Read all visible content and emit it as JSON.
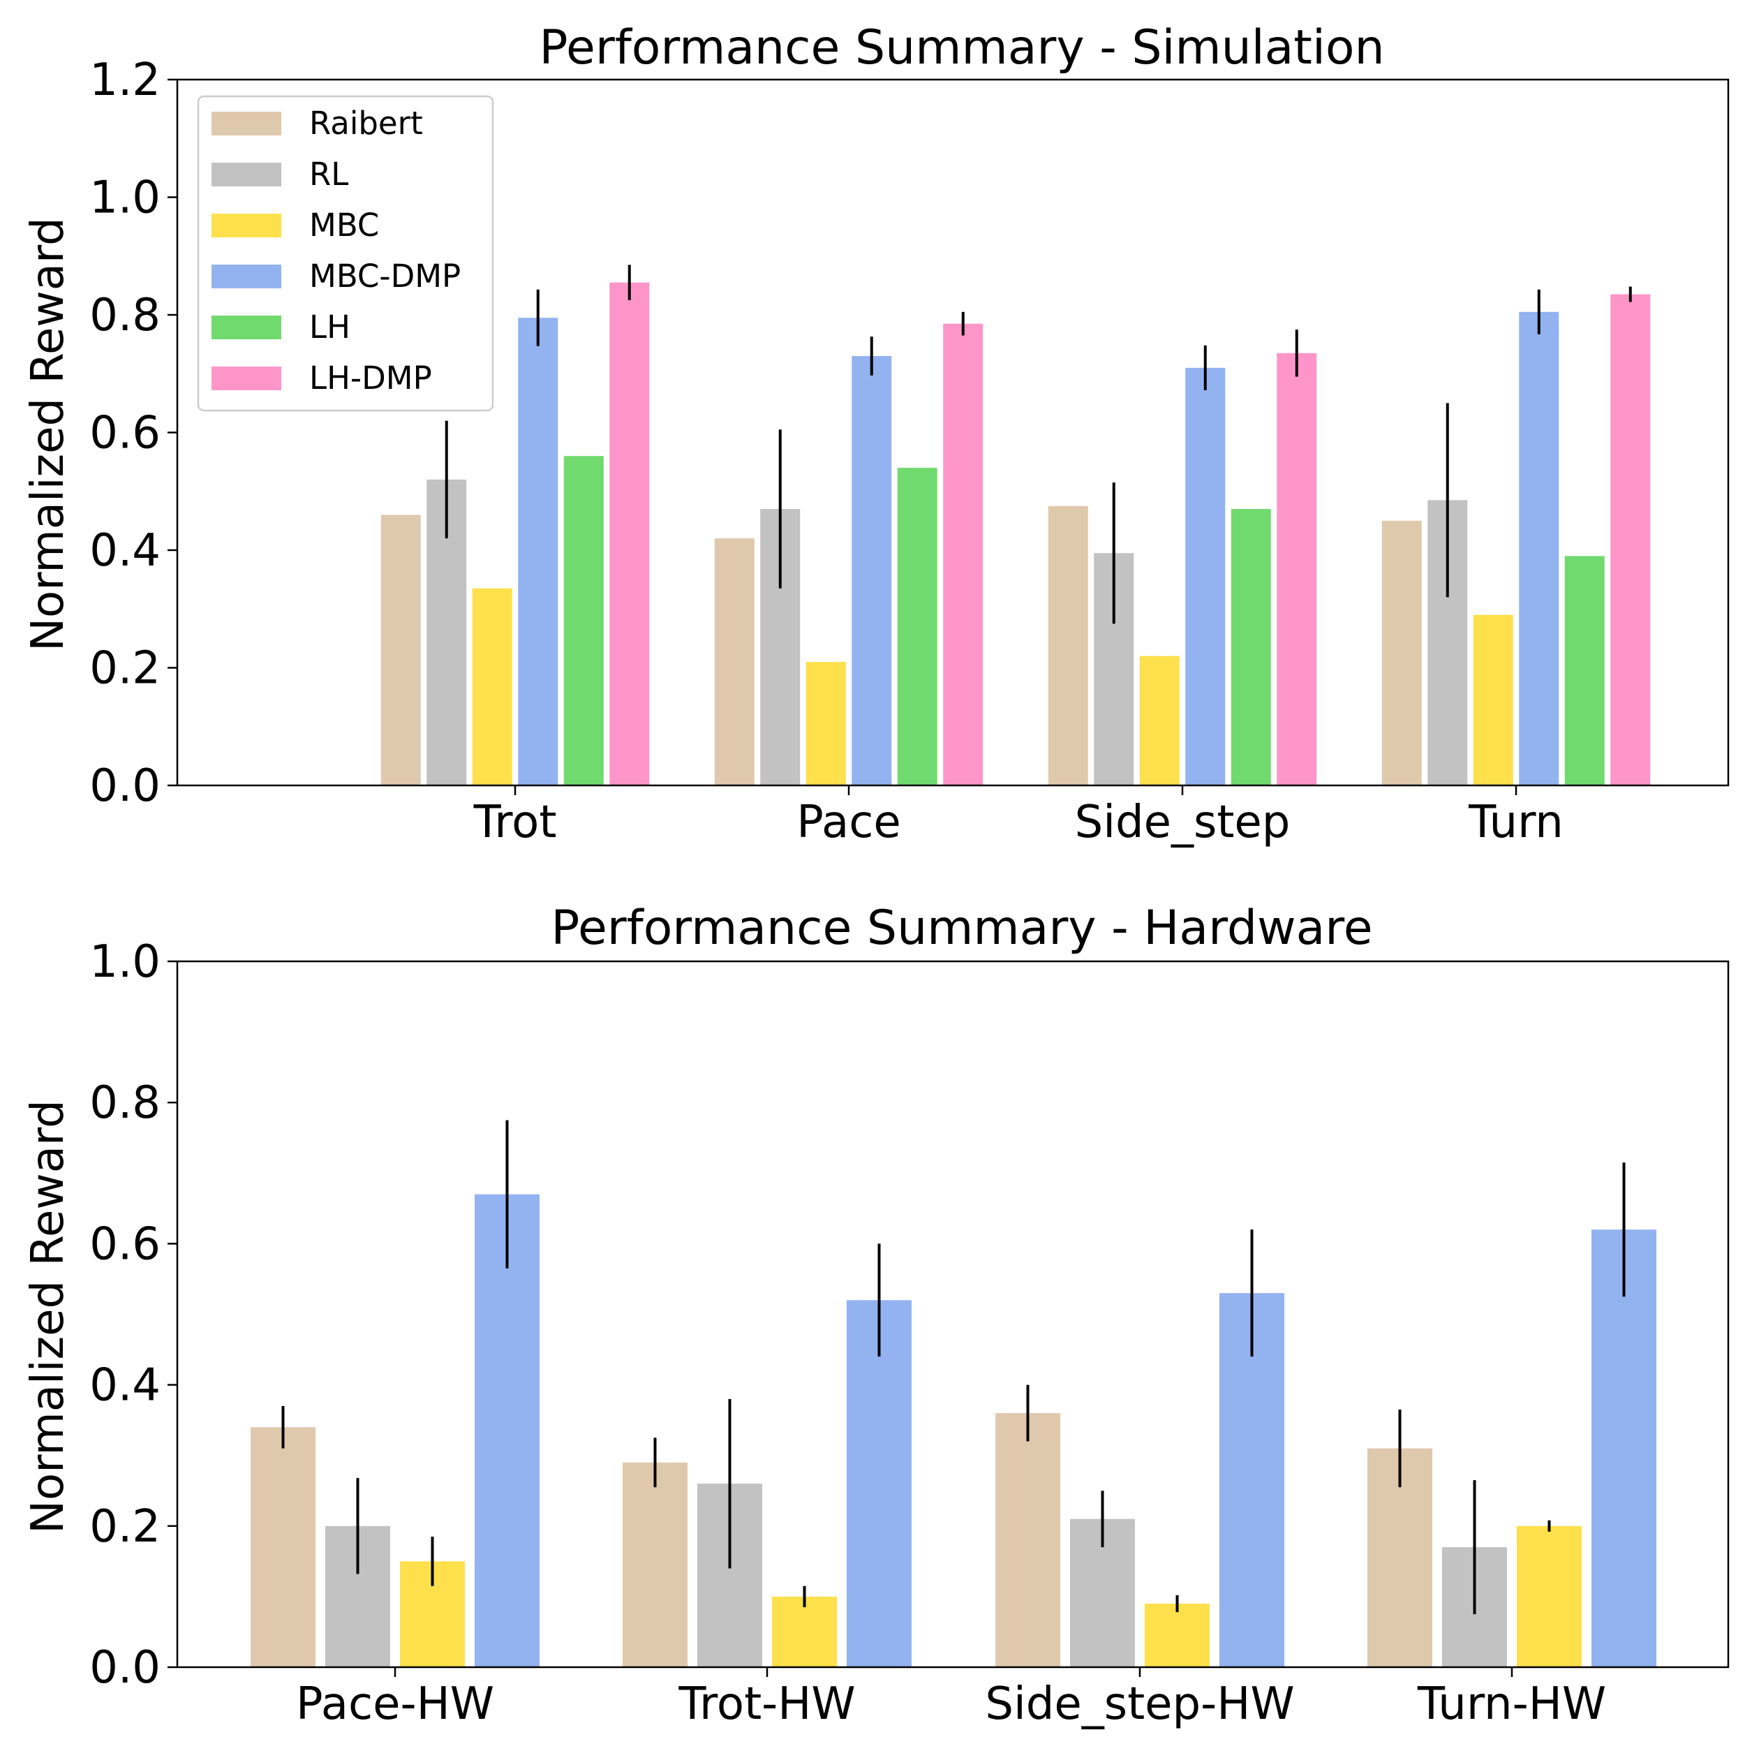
{
  "chart_data": [
    {
      "type": "bar",
      "title": "Performance Summary - Simulation",
      "xlabel": "",
      "ylabel": "Normalized Reward",
      "ylim": [
        0,
        1.2
      ],
      "yticks": [
        "0.0",
        "0.2",
        "0.4",
        "0.6",
        "0.8",
        "1.0",
        "1.2"
      ],
      "categories": [
        "Trot",
        "Pace",
        "Side_step",
        "Turn"
      ],
      "legend_position": "top-left",
      "series": [
        {
          "name": "Raibert",
          "color": "#dfc9ad",
          "values": [
            0.46,
            0.42,
            0.475,
            0.45
          ],
          "errors": [
            null,
            null,
            null,
            null
          ]
        },
        {
          "name": "RL",
          "color": "#c2c2c2",
          "values": [
            0.52,
            0.47,
            0.395,
            0.485
          ],
          "errors": [
            0.1,
            0.135,
            0.12,
            0.165
          ]
        },
        {
          "name": "MBC",
          "color": "#fde04c",
          "values": [
            0.335,
            0.21,
            0.22,
            0.29
          ],
          "errors": [
            null,
            null,
            null,
            null
          ]
        },
        {
          "name": "MBC-DMP",
          "color": "#93b2f0",
          "values": [
            0.795,
            0.73,
            0.71,
            0.805
          ],
          "errors": [
            0.048,
            0.033,
            0.038,
            0.038
          ]
        },
        {
          "name": "LH",
          "color": "#71da6e",
          "values": [
            0.56,
            0.54,
            0.47,
            0.39
          ],
          "errors": [
            null,
            null,
            null,
            null
          ]
        },
        {
          "name": "LH-DMP",
          "color": "#fe95c9",
          "values": [
            0.855,
            0.785,
            0.735,
            0.835
          ],
          "errors": [
            0.03,
            0.02,
            0.04,
            0.013
          ]
        }
      ]
    },
    {
      "type": "bar",
      "title": "Performance Summary - Hardware",
      "xlabel": "",
      "ylabel": "Normalized Reward",
      "ylim": [
        0,
        1.0
      ],
      "yticks": [
        "0.0",
        "0.2",
        "0.4",
        "0.6",
        "0.8",
        "1.0"
      ],
      "categories": [
        "Pace-HW",
        "Trot-HW",
        "Side_step-HW",
        "Turn-HW"
      ],
      "series": [
        {
          "name": "Raibert",
          "color": "#dfc9ad",
          "values": [
            0.34,
            0.29,
            0.36,
            0.31
          ],
          "errors": [
            0.03,
            0.035,
            0.04,
            0.055
          ]
        },
        {
          "name": "RL",
          "color": "#c2c2c2",
          "values": [
            0.2,
            0.26,
            0.21,
            0.17
          ],
          "errors": [
            0.068,
            0.12,
            0.04,
            0.095
          ]
        },
        {
          "name": "MBC",
          "color": "#fde04c",
          "values": [
            0.15,
            0.1,
            0.09,
            0.2
          ],
          "errors": [
            0.035,
            0.015,
            0.012,
            0.008
          ]
        },
        {
          "name": "MBC-DMP",
          "color": "#93b2f0",
          "values": [
            0.67,
            0.52,
            0.53,
            0.62
          ],
          "errors": [
            0.105,
            0.08,
            0.09,
            0.095
          ]
        }
      ]
    }
  ]
}
